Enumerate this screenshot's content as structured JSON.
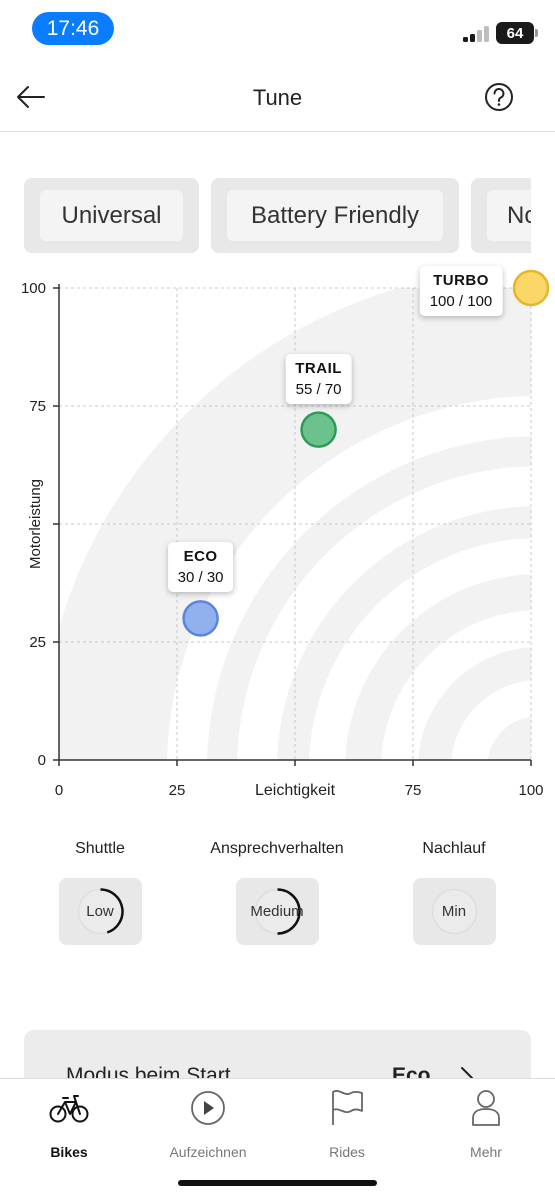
{
  "status": {
    "time": "17:46",
    "battery": "64"
  },
  "header": {
    "title": "Tune"
  },
  "presets": [
    {
      "label": "Universal",
      "selected": false
    },
    {
      "label": "Battery Friendly",
      "selected": false
    },
    {
      "label": "No",
      "selected": false
    }
  ],
  "chart_data": {
    "type": "scatter",
    "xlabel": "Leichtigkeit",
    "ylabel": "Motorleistung",
    "xlim": [
      0,
      100
    ],
    "ylim": [
      0,
      100
    ],
    "x_ticks": [
      "0",
      "25",
      "",
      "75",
      "100"
    ],
    "y_ticks": [
      "0",
      "25",
      "",
      "75",
      "100"
    ],
    "grid": true,
    "points": [
      {
        "name": "ECO",
        "x": 30,
        "y": 30,
        "value_label": "30 / 30",
        "color": "#92b0ee",
        "stroke": "#5a85dc"
      },
      {
        "name": "TRAIL",
        "x": 55,
        "y": 70,
        "value_label": "55 / 70",
        "color": "#6cc28c",
        "stroke": "#2f9a57"
      },
      {
        "name": "TURBO",
        "x": 100,
        "y": 100,
        "value_label": "100 / 100",
        "color": "#fbd767",
        "stroke": "#e7b52a"
      }
    ]
  },
  "dials": [
    {
      "title": "Shuttle",
      "value": "Low",
      "level": 0.45
    },
    {
      "title": "Ansprechverhalten",
      "value": "Medium",
      "level": 0.5
    },
    {
      "title": "Nachlauf",
      "value": "Min",
      "level": 0.0
    }
  ],
  "start_mode": {
    "label": "Modus beim Start",
    "value": "Eco"
  },
  "tabs": [
    {
      "label": "Bikes",
      "icon": "bike-icon",
      "active": true
    },
    {
      "label": "Aufzeichnen",
      "icon": "play-icon",
      "active": false
    },
    {
      "label": "Rides",
      "icon": "flag-icon",
      "active": false
    },
    {
      "label": "Mehr",
      "icon": "person-icon",
      "active": false
    }
  ]
}
